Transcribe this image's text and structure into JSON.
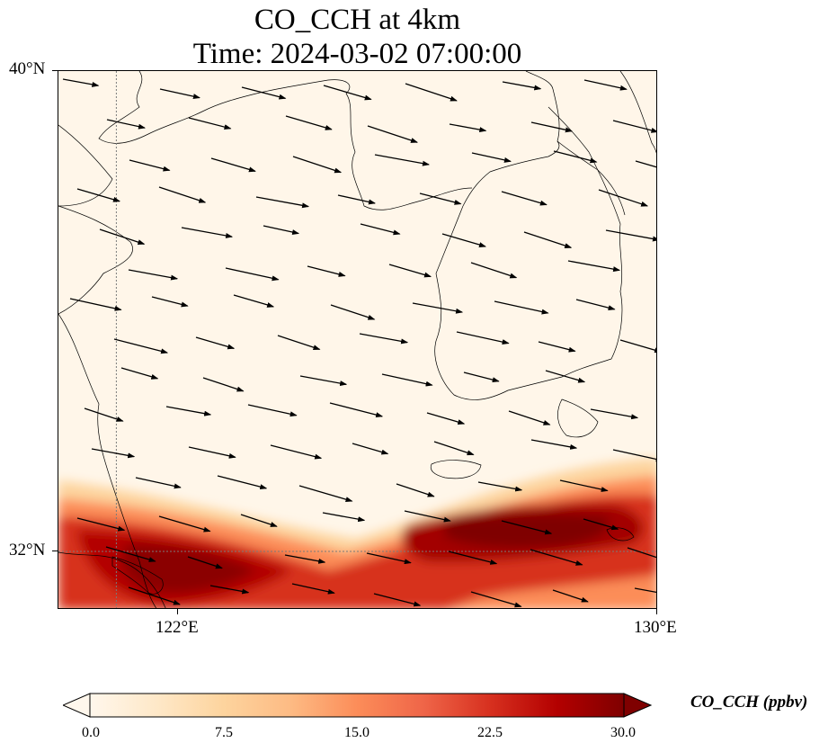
{
  "title": {
    "line1": "CO_CCH at 4km",
    "line2": "Time: 2024-03-02 07:00:00"
  },
  "map": {
    "lon_range": [
      120,
      130
    ],
    "lat_range": [
      31,
      40
    ],
    "lat_ticks": [
      {
        "value": 40,
        "label": "40°N"
      },
      {
        "value": 32,
        "label": "32°N"
      }
    ],
    "lon_ticks": [
      {
        "value": 122,
        "label": "122°E"
      },
      {
        "value": 130,
        "label": "130°E"
      }
    ],
    "gridlines": {
      "lon": [
        122
      ],
      "lat": [
        32
      ],
      "style": "dotted"
    }
  },
  "colorbar": {
    "label": "CO_CCH (ppbv)",
    "min": 0.0,
    "max": 30.0,
    "ticks": [
      "0.0",
      "7.5",
      "15.0",
      "22.5",
      "30.0"
    ],
    "extend": "both",
    "colormap": [
      "#fff7ec",
      "#fee8c8",
      "#fdd49e",
      "#fdbb84",
      "#fc8d59",
      "#ef6548",
      "#d7301f",
      "#b30000",
      "#7f0000"
    ]
  },
  "wind_arrow_color": "#000000",
  "coastline_color": "#000000"
}
